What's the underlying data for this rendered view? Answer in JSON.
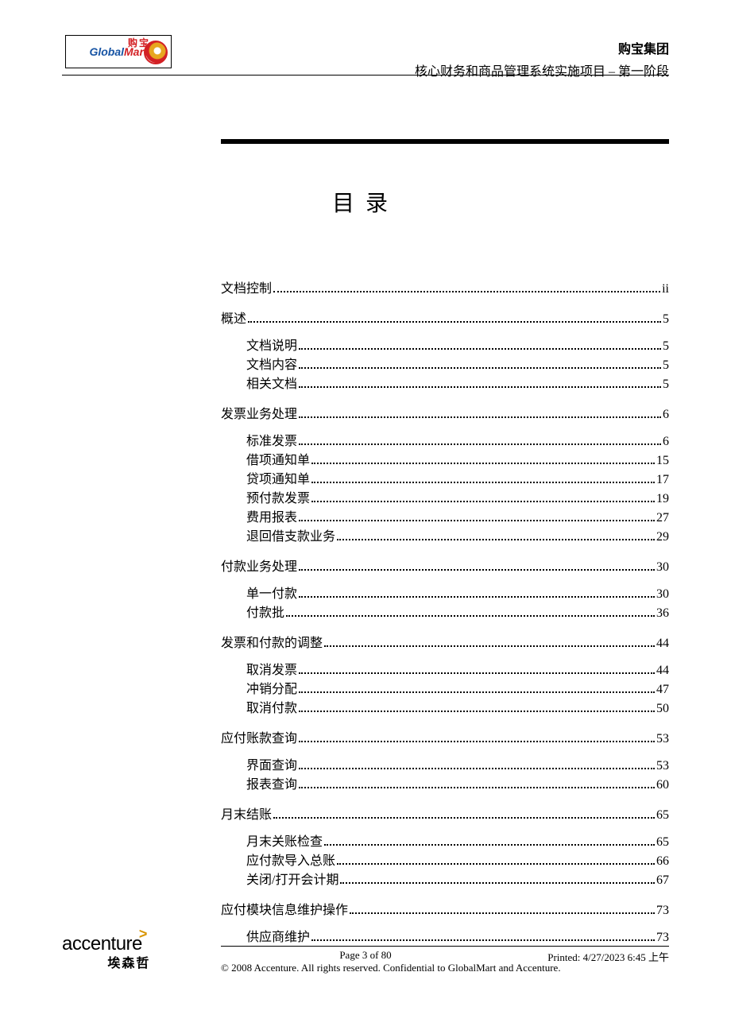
{
  "header": {
    "logo_en_1": "Global",
    "logo_en_2": "Mart",
    "logo_cn": "购宝",
    "company": "购宝集团",
    "project": "核心财务和商品管理系统实施项目 – 第一阶段"
  },
  "title": "目录",
  "toc": [
    {
      "level": 0,
      "label": "文档控制",
      "page": "ii"
    },
    {
      "level": 0,
      "label": "概述",
      "page": "5"
    },
    {
      "level": 1,
      "label": "文档说明",
      "page": "5"
    },
    {
      "level": 1,
      "label": "文档内容",
      "page": "5"
    },
    {
      "level": 1,
      "label": "相关文档",
      "page": "5"
    },
    {
      "level": 0,
      "label": "发票业务处理",
      "page": "6"
    },
    {
      "level": 1,
      "label": "标准发票",
      "page": "6"
    },
    {
      "level": 1,
      "label": "借项通知单",
      "page": "15"
    },
    {
      "level": 1,
      "label": "贷项通知单",
      "page": "17"
    },
    {
      "level": 1,
      "label": "预付款发票",
      "page": "19"
    },
    {
      "level": 1,
      "label": "费用报表",
      "page": "27"
    },
    {
      "level": 1,
      "label": "退回借支款业务",
      "page": "29"
    },
    {
      "level": 0,
      "label": "付款业务处理",
      "page": "30"
    },
    {
      "level": 1,
      "label": "单一付款",
      "page": "30"
    },
    {
      "level": 1,
      "label": "付款批",
      "page": "36"
    },
    {
      "level": 0,
      "label": "发票和付款的调整",
      "page": "44"
    },
    {
      "level": 1,
      "label": "取消发票",
      "page": "44"
    },
    {
      "level": 1,
      "label": "冲销分配",
      "page": "47"
    },
    {
      "level": 1,
      "label": "取消付款",
      "page": "50"
    },
    {
      "level": 0,
      "label": "应付账款查询",
      "page": "53"
    },
    {
      "level": 1,
      "label": "界面查询",
      "page": "53"
    },
    {
      "level": 1,
      "label": "报表查询",
      "page": "60"
    },
    {
      "level": 0,
      "label": "月末结账",
      "page": "65"
    },
    {
      "level": 1,
      "label": "月末关账检查",
      "page": "65"
    },
    {
      "level": 1,
      "label": "应付款导入总账",
      "page": "66"
    },
    {
      "level": 1,
      "label": "关闭/打开会计期",
      "page": "67"
    },
    {
      "level": 0,
      "label": "应付模块信息维护操作",
      "page": "73"
    },
    {
      "level": 1,
      "label": "供应商维护",
      "page": "73"
    }
  ],
  "footer": {
    "logo_en": "accenture",
    "logo_cn": "埃森哲",
    "page_info": "Page 3 of 80",
    "printed": "Printed: 4/27/2023 6:45 上午",
    "copyright": "© 2008 Accenture. All rights reserved. Confidential to GlobalMart and Accenture."
  }
}
